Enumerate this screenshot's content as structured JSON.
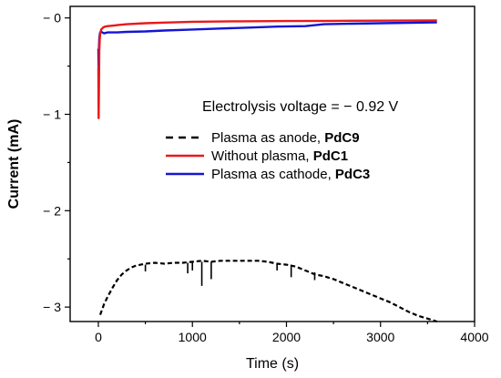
{
  "chart_data": {
    "type": "line",
    "title": "",
    "xlabel": "Time (s)",
    "ylabel": "Current (mA)",
    "xlim": [
      -300,
      4000
    ],
    "ylim": [
      -3.15,
      0.12
    ],
    "xticks": [
      0,
      1000,
      2000,
      3000,
      4000
    ],
    "yticks": [
      0,
      -1,
      -2,
      -3
    ],
    "ytick_labels": [
      "− 0",
      "− 1",
      "− 2",
      "− 3"
    ],
    "annotation": "Electrolysis voltage = − 0.92 V",
    "legend_position": "center-right",
    "series": [
      {
        "legend_text": "Plasma as anode, ",
        "legend_bold": "PdC9",
        "color": "#000000",
        "style": "dashed",
        "x": [
          20,
          60,
          100,
          150,
          200,
          250,
          300,
          350,
          400,
          450,
          500,
          600,
          700,
          800,
          900,
          1000,
          1100,
          1200,
          1300,
          1400,
          1500,
          1600,
          1700,
          1800,
          1900,
          2000,
          2100,
          2200,
          2300,
          2400,
          2500,
          2600,
          2700,
          2800,
          2900,
          3000,
          3100,
          3200,
          3300,
          3400,
          3500,
          3600
        ],
        "y": [
          -3.08,
          -2.97,
          -2.89,
          -2.8,
          -2.72,
          -2.66,
          -2.62,
          -2.59,
          -2.57,
          -2.56,
          -2.55,
          -2.54,
          -2.55,
          -2.54,
          -2.54,
          -2.53,
          -2.52,
          -2.53,
          -2.52,
          -2.52,
          -2.52,
          -2.52,
          -2.52,
          -2.53,
          -2.55,
          -2.56,
          -2.58,
          -2.62,
          -2.66,
          -2.68,
          -2.71,
          -2.75,
          -2.79,
          -2.83,
          -2.87,
          -2.91,
          -2.95,
          -3.0,
          -3.05,
          -3.09,
          -3.12,
          -3.15
        ],
        "spikes": [
          {
            "x": 500,
            "y0": -2.56,
            "y1": -2.63
          },
          {
            "x": 950,
            "y0": -2.54,
            "y1": -2.65
          },
          {
            "x": 1000,
            "y0": -2.54,
            "y1": -2.62
          },
          {
            "x": 1100,
            "y0": -2.53,
            "y1": -2.78
          },
          {
            "x": 1200,
            "y0": -2.53,
            "y1": -2.71
          },
          {
            "x": 1900,
            "y0": -2.55,
            "y1": -2.62
          },
          {
            "x": 2050,
            "y0": -2.56,
            "y1": -2.69
          },
          {
            "x": 2300,
            "y0": -2.64,
            "y1": -2.72
          }
        ]
      },
      {
        "legend_text": "Without plasma, ",
        "legend_bold": "PdC1",
        "color": "#e8191b",
        "style": "solid",
        "x": [
          0,
          3,
          6,
          10,
          15,
          20,
          30,
          50,
          70,
          100,
          150,
          200,
          300,
          500,
          700,
          1000,
          1500,
          2000,
          2500,
          3000,
          3600
        ],
        "y": [
          -0.52,
          -1.04,
          -0.75,
          -0.35,
          -0.22,
          -0.16,
          -0.12,
          -0.1,
          -0.09,
          -0.085,
          -0.08,
          -0.075,
          -0.065,
          -0.055,
          -0.048,
          -0.04,
          -0.035,
          -0.032,
          -0.03,
          -0.028,
          -0.026
        ]
      },
      {
        "legend_text": "Plasma as cathode, ",
        "legend_bold": "PdC3",
        "color": "#1515d2",
        "style": "solid",
        "x": [
          0,
          3,
          6,
          10,
          15,
          20,
          30,
          40,
          60,
          100,
          150,
          200,
          300,
          500,
          700,
          1000,
          1300,
          1600,
          1900,
          2200,
          2400,
          2700,
          3000,
          3300,
          3600
        ],
        "y": [
          -0.32,
          -0.52,
          -0.33,
          -0.22,
          -0.17,
          -0.15,
          -0.14,
          -0.15,
          -0.16,
          -0.15,
          -0.15,
          -0.15,
          -0.145,
          -0.14,
          -0.13,
          -0.12,
          -0.11,
          -0.1,
          -0.09,
          -0.085,
          -0.065,
          -0.06,
          -0.055,
          -0.05,
          -0.045
        ]
      }
    ]
  }
}
